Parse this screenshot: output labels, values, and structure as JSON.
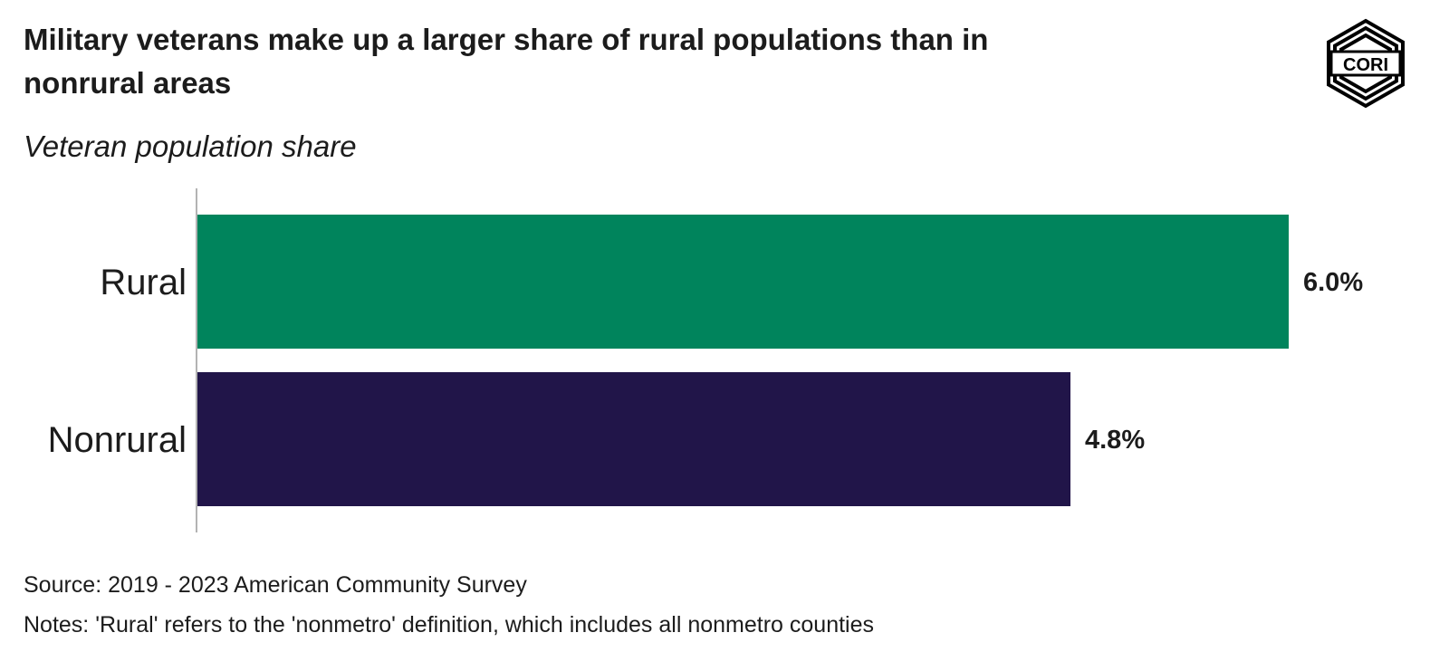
{
  "chart_data": {
    "type": "bar",
    "orientation": "horizontal",
    "title": "Military veterans make up a larger share of rural populations than in nonrural areas",
    "subtitle": "Veteran population share",
    "categories": [
      "Rural",
      "Nonrural"
    ],
    "values": [
      6.0,
      4.8
    ],
    "value_labels": [
      "6.0%",
      "4.8%"
    ],
    "colors": [
      "#00845c",
      "#211549"
    ],
    "xlim": [
      0,
      6.0
    ],
    "grid": false,
    "legend": "none"
  },
  "logo": {
    "text": "CORI",
    "icon": "cori-hexagon-logo-icon"
  },
  "footer": {
    "source": "Source: 2019 - 2023 American Community Survey",
    "notes": "Notes: 'Rural' refers to the 'nonmetro' definition, which includes all nonmetro counties"
  }
}
